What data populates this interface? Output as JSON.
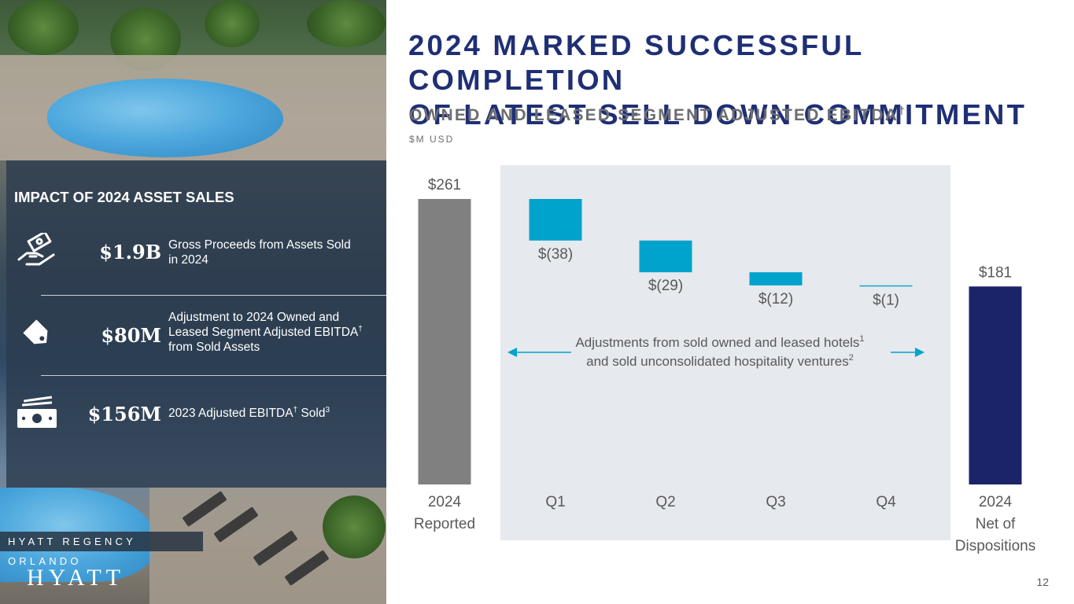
{
  "header": {
    "title_line1": "2024 MARKED SUCCESSFUL COMPLETION",
    "title_line2": "OF LATEST SELL DOWN COMMITMENT",
    "subtitle": "OWNED AND LEASED SEGMENT ADJUSTED EBITDA",
    "subtitle_mark": "†",
    "unit": "$M USD"
  },
  "impact": {
    "title": "IMPACT OF 2024 ASSET SALES",
    "items": [
      {
        "icon": "money-hand-icon",
        "value": "$1.9B",
        "desc_line1": "Gross Proceeds from Assets Sold",
        "desc_line2": "in 2024"
      },
      {
        "icon": "price-tag-icon",
        "value": "$80M",
        "desc_line1": "Adjustment to 2024 Owned and",
        "desc_line2": "Leased Segment Adjusted EBITDA",
        "desc_mark2": "†",
        "desc_line3": "from Sold Assets"
      },
      {
        "icon": "cash-bill-icon",
        "value": "$156M",
        "desc_a": "2023 Adjusted EBITDA",
        "desc_mark_a": "†",
        "desc_b": " Sold",
        "desc_mark_b": "3"
      }
    ]
  },
  "photo": {
    "location": "HYATT REGENCY ORLANDO",
    "logo": "HYATT"
  },
  "colors": {
    "title": "#1f2f75",
    "reported": "#808080",
    "adjustment": "#00a3cc",
    "net": "#1b2369",
    "shade": "#e6e9ee"
  },
  "chart_data": {
    "type": "bar",
    "subtype": "waterfall",
    "categories": [
      "2024 Reported",
      "Q1",
      "Q2",
      "Q3",
      "Q4",
      "2024 Net of Dispositions"
    ],
    "category_labels": [
      [
        "2024",
        "Reported"
      ],
      [
        "Q1"
      ],
      [
        "Q2"
      ],
      [
        "Q3"
      ],
      [
        "Q4"
      ],
      [
        "2024",
        "Net of",
        "Dispositions"
      ]
    ],
    "values": [
      261,
      -38,
      -29,
      -12,
      -1,
      181
    ],
    "value_labels": [
      "$261",
      "$(38)",
      "$(29)",
      "$(12)",
      "$(1)",
      "$181"
    ],
    "annotation_line1": "Adjustments from sold owned and leased hotels",
    "annotation_mark1": "1",
    "annotation_line2": "and sold unconsolidated hospitality ventures",
    "annotation_mark2": "2",
    "ylim": [
      0,
      261
    ]
  },
  "footer": {
    "page_number": "12"
  }
}
